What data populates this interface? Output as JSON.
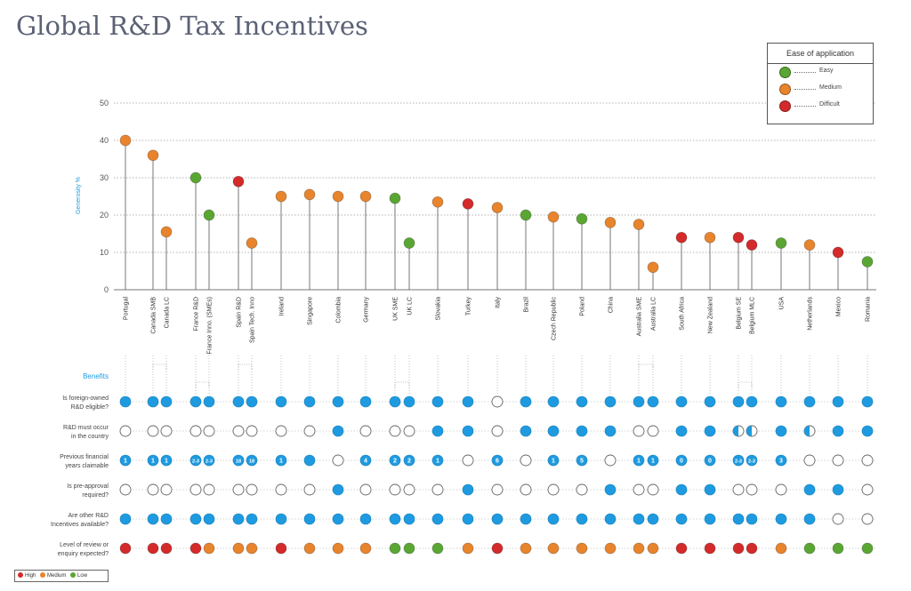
{
  "title": "Global R&D Tax Incentives",
  "legend": {
    "title": "Ease of application",
    "items": [
      {
        "label": "Easy",
        "color": "#5aa632"
      },
      {
        "label": "Medium",
        "color": "#e8842c"
      },
      {
        "label": "Difficult",
        "color": "#d42a2a"
      }
    ]
  },
  "level_legend": {
    "items": [
      {
        "label": "High",
        "color": "#d42a2a"
      },
      {
        "label": "Medium",
        "color": "#e8842c"
      },
      {
        "label": "Low",
        "color": "#5aa632"
      }
    ]
  },
  "benefits_heading": "Benefits",
  "icon_names": {
    "yes": "filled-circle-icon",
    "no": "empty-circle-icon",
    "partial": "half-filled-circle-icon"
  },
  "chart_data": {
    "type": "lollipop",
    "ylabel": "Generosity %",
    "ylim": [
      0,
      50
    ],
    "yticks": [
      0,
      10,
      20,
      30,
      40,
      50
    ],
    "grid": true,
    "legend_position": "top-right",
    "categories": [
      "Portugal",
      "Canada SMB",
      "Canada LC",
      "France R&D",
      "France Inno. (SMEs)",
      "Spain R&D",
      "Spain Tech. Inno",
      "Ireland",
      "Singapore",
      "Colombia",
      "Germany",
      "UK SME",
      "UK LC",
      "Slovakia",
      "Turkey",
      "Italy",
      "Brazil",
      "Czech Republic",
      "Poland",
      "China",
      "Australia SME",
      "Australia LC",
      "South Africa",
      "New Zealand",
      "Belgium SE",
      "Belgium MLC",
      "USA",
      "Netherlands",
      "Mexico",
      "Romania"
    ],
    "values": [
      40,
      36,
      15.5,
      30,
      20,
      29,
      12.5,
      25,
      25.5,
      25,
      25,
      24.5,
      12.5,
      23.5,
      23,
      22,
      20,
      19.5,
      19,
      18,
      17.5,
      6,
      14,
      14,
      14,
      12,
      12.5,
      12,
      10,
      7.5
    ],
    "ease": [
      "Medium",
      "Medium",
      "Medium",
      "Easy",
      "Easy",
      "Difficult",
      "Medium",
      "Medium",
      "Medium",
      "Medium",
      "Medium",
      "Easy",
      "Easy",
      "Medium",
      "Difficult",
      "Medium",
      "Easy",
      "Medium",
      "Easy",
      "Medium",
      "Medium",
      "Medium",
      "Difficult",
      "Medium",
      "Difficult",
      "Difficult",
      "Easy",
      "Medium",
      "Difficult",
      "Easy"
    ],
    "groups": [
      [
        1,
        2
      ],
      [
        3,
        4
      ],
      [
        5,
        6
      ],
      [
        11,
        12
      ],
      [
        20,
        21
      ],
      [
        24,
        25
      ]
    ],
    "benefits": [
      {
        "label": [
          "Is foreign-owned",
          "R&D eligible?"
        ],
        "values": [
          "Y",
          "Y",
          "Y",
          "Y",
          "Y",
          "Y",
          "Y",
          "Y",
          "Y",
          "Y",
          "Y",
          "Y",
          "Y",
          "Y",
          "Y",
          "N",
          "Y",
          "Y",
          "Y",
          "Y",
          "Y",
          "Y",
          "Y",
          "Y",
          "Y",
          "Y",
          "Y",
          "Y",
          "Y",
          "Y"
        ]
      },
      {
        "label": [
          "R&D must occur",
          "in the country"
        ],
        "values": [
          "N",
          "N",
          "N",
          "N",
          "N",
          "N",
          "N",
          "N",
          "N",
          "Y",
          "N",
          "N",
          "N",
          "Y",
          "Y",
          "N",
          "Y",
          "Y",
          "Y",
          "Y",
          "N",
          "N",
          "Y",
          "Y",
          "P",
          "P",
          "Y",
          "P",
          "Y",
          "Y"
        ]
      },
      {
        "label": [
          "Previous financial",
          "years claimable"
        ],
        "values": [
          "1",
          "1",
          "1",
          "2-3",
          "2-3",
          "18",
          "18",
          "1",
          "Y",
          "N",
          "4",
          "2",
          "2",
          "1",
          "N",
          "6",
          "N",
          "1",
          "5",
          "N",
          "1",
          "1",
          "0",
          "0",
          "2-3",
          "2-3",
          "3",
          "N",
          "N",
          "N"
        ]
      },
      {
        "label": [
          "Is pre-approval",
          "required?"
        ],
        "values": [
          "N",
          "N",
          "N",
          "N",
          "N",
          "N",
          "N",
          "N",
          "N",
          "Y",
          "N",
          "N",
          "N",
          "N",
          "Y",
          "N",
          "N",
          "N",
          "N",
          "Y",
          "N",
          "N",
          "Y",
          "Y",
          "N",
          "N",
          "N",
          "Y",
          "Y",
          "N"
        ]
      },
      {
        "label": [
          "Are other R&D",
          "Incentives available?"
        ],
        "values": [
          "Y",
          "Y",
          "Y",
          "Y",
          "Y",
          "Y",
          "Y",
          "Y",
          "Y",
          "Y",
          "Y",
          "Y",
          "Y",
          "Y",
          "Y",
          "Y",
          "Y",
          "Y",
          "Y",
          "Y",
          "Y",
          "Y",
          "Y",
          "Y",
          "Y",
          "Y",
          "Y",
          "Y",
          "N",
          "N"
        ]
      },
      {
        "label": [
          "Level of review or",
          "enquiry expected?"
        ],
        "values": [
          "High",
          "High",
          "High",
          "High",
          "Medium",
          "Medium",
          "Medium",
          "High",
          "Medium",
          "Medium",
          "Medium",
          "Low",
          "Low",
          "Low",
          "Medium",
          "High",
          "Medium",
          "Medium",
          "Medium",
          "Medium",
          "Medium",
          "Medium",
          "High",
          "High",
          "High",
          "High",
          "Medium",
          "Low",
          "Low",
          "Low"
        ]
      }
    ]
  }
}
